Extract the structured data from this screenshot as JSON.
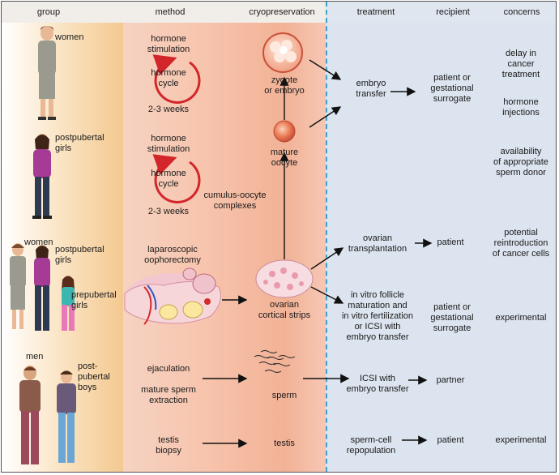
{
  "headers": {
    "group": "group",
    "method": "method",
    "cryopreservation": "cryopreservation",
    "treatment": "treatment",
    "recipient": "recipient",
    "concerns": "concerns"
  },
  "groups": {
    "women": "women",
    "postpubertal_girls_1": "postpubertal\ngirls",
    "women_2": "women",
    "postpubertal_girls_2": "postpubertal\ngirls",
    "prepubertal_girls": "prepubertal\ngirls",
    "men": "men",
    "postpubertal_boys": "post-\npubertal\nboys"
  },
  "methods": {
    "hormone_stimulation_1": "hormone\nstimulation",
    "hormone_cycle_1": "hormone\ncycle",
    "weeks_1": "2-3 weeks",
    "hormone_stimulation_2": "hormone\nstimulation",
    "hormone_cycle_2": "hormone\ncycle",
    "weeks_2": "2-3 weeks",
    "laparoscopic": "laparoscopic\noophorectomy",
    "ejaculation": "ejaculation",
    "mature_sperm_extraction": "mature sperm\nextraction",
    "testis_biopsy": "testis\nbiopsy"
  },
  "cryo": {
    "zygote": "zygote\nor embryo",
    "mature_oocyte": "mature\noocyte",
    "cumulus": "cumulus-oocyte\ncomplexes",
    "ovarian_strips": "ovarian\ncortical strips",
    "sperm": "sperm",
    "testis": "testis"
  },
  "treatments": {
    "embryo_transfer": "embryo\ntransfer",
    "ovarian_transplantation": "ovarian\ntransplantation",
    "in_vitro": "in vitro follicle\nmaturation and\nin vitro fertilization\nor ICSI with\nembryo transfer",
    "icsi": "ICSI with\nembryo transfer",
    "sperm_cell": "sperm-cell\nrepopulation"
  },
  "recipients": {
    "patient_or_surrogate_1": "patient or\ngestational\nsurrogate",
    "patient_1": "patient",
    "patient_or_surrogate_2": "patient or\ngestational\nsurrogate",
    "partner": "partner",
    "patient_2": "patient"
  },
  "concerns": {
    "delay": "delay in\ncancer\ntreatment",
    "hormone_injections": "hormone\ninjections",
    "sperm_donor": "availability\nof appropriate\nsperm donor",
    "reintroduction": "potential\nreintroduction\nof cancer cells",
    "experimental_1": "experimental",
    "experimental_2": "experimental"
  },
  "colors": {
    "divider": "#3ba3c9",
    "cycle_arrow": "#d3262b",
    "cell": "#e8704e",
    "strip": "#f3c7cf",
    "right_panel": "#dce4ef"
  }
}
